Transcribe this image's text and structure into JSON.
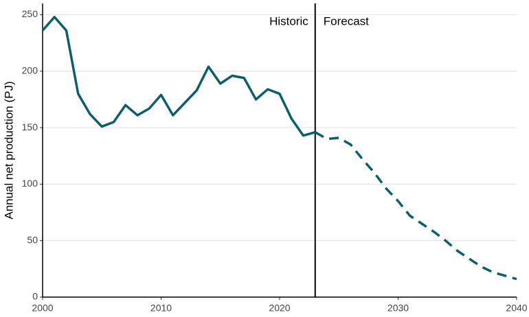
{
  "chart_data": {
    "type": "line",
    "y_label": "Annual net production (PJ)",
    "xlim": [
      2000,
      2040
    ],
    "xticks": [
      2000,
      2010,
      2020,
      2030,
      2040
    ],
    "ylim": [
      0,
      260
    ],
    "yticks": [
      0,
      50,
      100,
      150,
      200,
      250
    ],
    "grid": true,
    "reference_line": {
      "x": 2023,
      "color": "#000000"
    },
    "series": [
      {
        "name": "Historic",
        "color": "#0b5f6b",
        "line_style": "solid",
        "x": [
          2000,
          2001,
          2002,
          2003,
          2004,
          2005,
          2006,
          2007,
          2008,
          2009,
          2010,
          2011,
          2012,
          2013,
          2014,
          2015,
          2016,
          2017,
          2018,
          2019,
          2020,
          2021,
          2022,
          2023
        ],
        "values": [
          236,
          248,
          236,
          180,
          162,
          151,
          155,
          170,
          161,
          167,
          179,
          161,
          172,
          183,
          204,
          189,
          196,
          194,
          175,
          184,
          180,
          158,
          143,
          146
        ]
      },
      {
        "name": "Forecast",
        "color": "#0b5f6b",
        "line_style": "dashed",
        "x": [
          2023,
          2024,
          2025,
          2026,
          2027,
          2028,
          2029,
          2030,
          2031,
          2032,
          2033,
          2034,
          2035,
          2036,
          2037,
          2038,
          2039,
          2040
        ],
        "values": [
          146,
          140,
          141,
          135,
          122,
          110,
          96,
          85,
          72,
          65,
          58,
          50,
          41,
          34,
          27,
          22,
          19,
          16
        ]
      }
    ]
  }
}
